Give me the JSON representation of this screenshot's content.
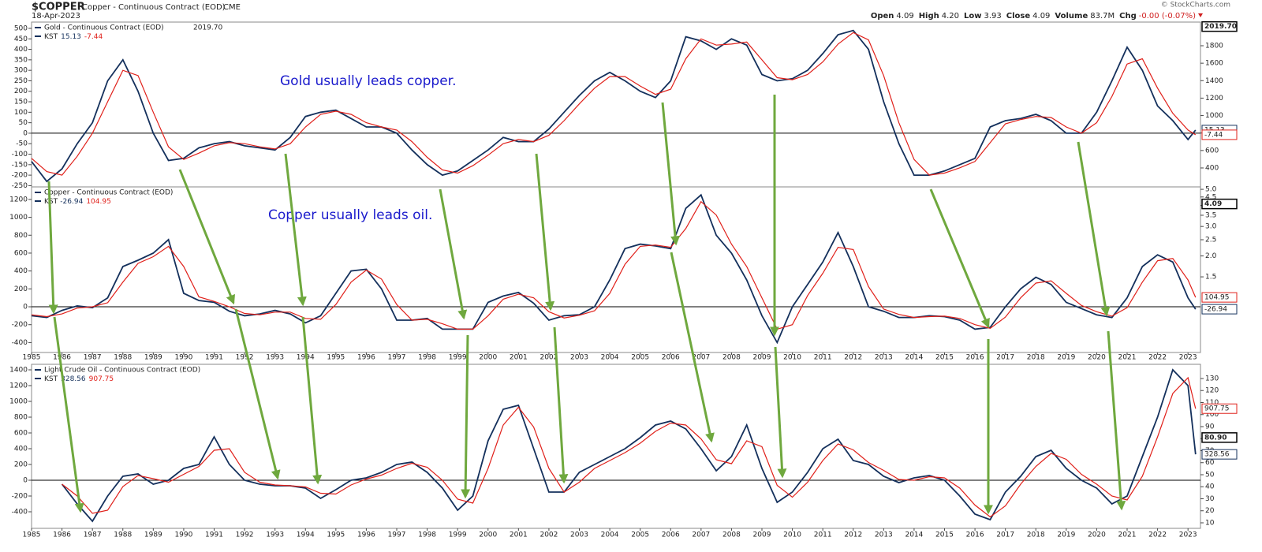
{
  "header": {
    "symbol": "$COPPER",
    "name": "Copper - Continuous Contract (EOD)",
    "exchange": "CME",
    "date": "18-Apr-2023",
    "copyright": "© StockCharts.com",
    "quote": [
      {
        "label": "Open",
        "value": "4.09"
      },
      {
        "label": "High",
        "value": "4.20"
      },
      {
        "label": "Low",
        "value": "3.93"
      },
      {
        "label": "Close",
        "value": "4.09"
      },
      {
        "label": "Volume",
        "value": "83.7M"
      },
      {
        "label": "Chg",
        "value": "-0.00 (-0.07%)"
      }
    ]
  },
  "chart_data": [
    {
      "type": "line",
      "title": "Gold - Continuous Contract (EOD)",
      "price_label": {
        "value": 2019.7,
        "label": "2019.70"
      },
      "annotation": "Gold usually leads copper.",
      "x": [
        1985,
        1985.5,
        1986,
        1986.5,
        1987,
        1987.5,
        1988,
        1988.5,
        1989,
        1989.5,
        1990,
        1990.5,
        1991,
        1991.5,
        1992,
        1992.5,
        1993,
        1993.5,
        1994,
        1994.5,
        1995,
        1995.5,
        1996,
        1996.5,
        1997,
        1997.5,
        1998,
        1998.5,
        1999,
        1999.5,
        2000,
        2000.5,
        2001,
        2001.5,
        2002,
        2002.5,
        2003,
        2003.5,
        2004,
        2004.5,
        2005,
        2005.5,
        2006,
        2006.5,
        2007,
        2007.5,
        2008,
        2008.5,
        2009,
        2009.5,
        2010,
        2010.5,
        2011,
        2011.5,
        2012,
        2012.5,
        2013,
        2013.5,
        2014,
        2014.5,
        2015,
        2015.5,
        2016,
        2016.5,
        2017,
        2017.5,
        2018,
        2018.5,
        2019,
        2019.5,
        2020,
        2020.5,
        2021,
        2021.5,
        2022,
        2022.5,
        2023,
        2023.25
      ],
      "xlim": [
        1985,
        2023.41
      ],
      "ylim": [
        -256,
        530
      ],
      "yticks": [
        -250,
        -200,
        -150,
        -100,
        -50,
        0,
        50,
        100,
        150,
        200,
        250,
        300,
        350,
        400,
        450,
        500
      ],
      "y2lim": [
        183,
        2071
      ],
      "y2ticks": [
        400,
        600,
        800,
        1000,
        1200,
        1400,
        1600,
        1800
      ],
      "series": [
        {
          "name": "KST",
          "color": "#14305c",
          "values": [
            -135,
            -230,
            -170,
            -50,
            50,
            250,
            350,
            200,
            0,
            -130,
            -120,
            -70,
            -50,
            -40,
            -60,
            -70,
            -80,
            -20,
            80,
            100,
            110,
            70,
            30,
            30,
            0,
            -80,
            -150,
            -200,
            -180,
            -130,
            -80,
            -20,
            -40,
            -40,
            20,
            100,
            180,
            250,
            290,
            250,
            200,
            170,
            250,
            460,
            440,
            400,
            450,
            420,
            280,
            250,
            260,
            300,
            380,
            470,
            490,
            400,
            150,
            -50,
            -200,
            -200,
            -180,
            -150,
            -120,
            30,
            60,
            70,
            90,
            60,
            0,
            0,
            100,
            250,
            410,
            300,
            130,
            60,
            -30,
            15.13
          ]
        },
        {
          "color": "#e0201a",
          "values": [
            -120,
            -183,
            -200,
            -110,
            0,
            150,
            300,
            275,
            100,
            -65,
            -125,
            -95,
            -60,
            -45,
            -50,
            -65,
            -75,
            -50,
            30,
            90,
            105,
            90,
            50,
            30,
            15,
            -40,
            -115,
            -175,
            -190,
            -155,
            -105,
            -50,
            -30,
            -40,
            -10,
            60,
            140,
            215,
            270,
            270,
            225,
            185,
            210,
            355,
            450,
            420,
            425,
            435,
            350,
            265,
            255,
            280,
            340,
            425,
            480,
            445,
            275,
            50,
            -125,
            -200,
            -190,
            -165,
            -135,
            -45,
            45,
            65,
            80,
            75,
            30,
            0,
            50,
            175,
            330,
            355,
            215,
            95,
            15,
            -7.44
          ]
        }
      ]
    },
    {
      "type": "line",
      "title": "Copper - Continuous Contract (EOD)",
      "price_label": 4.09,
      "annotation": "Copper usually leads oil.",
      "x": [
        1985,
        1985.5,
        1986,
        1986.5,
        1987,
        1987.5,
        1988,
        1988.5,
        1989,
        1989.5,
        1990,
        1990.5,
        1991,
        1991.5,
        1992,
        1992.5,
        1993,
        1993.5,
        1994,
        1994.5,
        1995,
        1995.5,
        1996,
        1996.5,
        1997,
        1997.5,
        1998,
        1998.5,
        1999,
        1999.5,
        2000,
        2000.5,
        2001,
        2001.5,
        2002,
        2002.5,
        2003,
        2003.5,
        2004,
        2004.5,
        2005,
        2005.5,
        2006,
        2006.5,
        2007,
        2007.5,
        2008,
        2008.5,
        2009,
        2009.5,
        2010,
        2010.5,
        2011,
        2011.5,
        2012,
        2012.5,
        2013,
        2013.5,
        2014,
        2014.5,
        2015,
        2015.5,
        2016,
        2016.5,
        2017,
        2017.5,
        2018,
        2018.5,
        2019,
        2019.5,
        2020,
        2020.5,
        2021,
        2021.5,
        2022,
        2022.5,
        2023,
        2023.25
      ],
      "xlim": [
        1985,
        2023.41
      ],
      "xticks": [
        1985,
        1986,
        1987,
        1988,
        1989,
        1990,
        1991,
        1992,
        1993,
        1994,
        1995,
        1996,
        1997,
        1998,
        1999,
        2000,
        2001,
        2002,
        2003,
        2004,
        2005,
        2006,
        2007,
        2008,
        2009,
        2010,
        2011,
        2012,
        2013,
        2014,
        2015,
        2016,
        2017,
        2018,
        2019,
        2020,
        2021,
        2022,
        2023
      ],
      "ylim": [
        -511,
        1340
      ],
      "yticks": [
        -400,
        -200,
        0,
        200,
        400,
        600,
        800,
        1000,
        1200
      ],
      "y2lim": [
        0.53,
        5.17
      ],
      "y2log": true,
      "y2ticks": [
        1.5,
        {
          "value": 2,
          "label": "2.0"
        },
        2.5,
        {
          "value": 3,
          "label": "3.0"
        },
        3.5,
        {
          "value": 4,
          "label": "4.0"
        },
        4.5,
        {
          "value": 5,
          "label": "5.0"
        }
      ],
      "series": [
        {
          "name": "KST",
          "color": "#14305c",
          "values": [
            -100,
            -120,
            -40,
            10,
            -10,
            100,
            450,
            520,
            600,
            750,
            150,
            70,
            50,
            -50,
            -100,
            -80,
            -40,
            -80,
            -180,
            -100,
            150,
            400,
            420,
            200,
            -150,
            -150,
            -130,
            -250,
            -250,
            -250,
            50,
            120,
            160,
            40,
            -150,
            -100,
            -90,
            0,
            300,
            650,
            700,
            680,
            650,
            1100,
            1250,
            800,
            600,
            300,
            -100,
            -400,
            0,
            250,
            500,
            830,
            450,
            0,
            -50,
            -120,
            -120,
            -100,
            -110,
            -150,
            -250,
            -230,
            0,
            200,
            330,
            250,
            50,
            -20,
            -90,
            -120,
            100,
            450,
            580,
            500,
            100,
            -26.94
          ]
        },
        {
          "color": "#e0201a",
          "values": [
            -90,
            -110,
            -80,
            -15,
            0,
            45,
            275,
            485,
            560,
            675,
            450,
            110,
            60,
            0,
            -75,
            -90,
            -60,
            -60,
            -130,
            -140,
            25,
            275,
            410,
            310,
            25,
            -150,
            -140,
            -190,
            -250,
            -250,
            -100,
            85,
            140,
            100,
            -55,
            -125,
            -95,
            -45,
            150,
            475,
            675,
            690,
            665,
            875,
            1175,
            1025,
            700,
            450,
            100,
            -250,
            -200,
            125,
            375,
            665,
            640,
            225,
            -25,
            -85,
            -120,
            -110,
            -105,
            -130,
            -200,
            -240,
            -115,
            100,
            265,
            290,
            150,
            15,
            -55,
            -105,
            -10,
            275,
            515,
            540,
            300,
            104.95
          ]
        }
      ]
    },
    {
      "type": "line",
      "title": "Light Crude Oil - Continuous Contract (EOD)",
      "price_label": {
        "value": 80.9,
        "label": "80.90"
      },
      "x": [
        1985,
        1985.5,
        1986,
        1986.5,
        1987,
        1987.5,
        1988,
        1988.5,
        1989,
        1989.5,
        1990,
        1990.5,
        1991,
        1991.5,
        1992,
        1992.5,
        1993,
        1993.5,
        1994,
        1994.5,
        1995,
        1995.5,
        1996,
        1996.5,
        1997,
        1997.5,
        1998,
        1998.5,
        1999,
        1999.5,
        2000,
        2000.5,
        2001,
        2001.5,
        2002,
        2002.5,
        2003,
        2003.5,
        2004,
        2004.5,
        2005,
        2005.5,
        2006,
        2006.5,
        2007,
        2007.5,
        2008,
        2008.5,
        2009,
        2009.5,
        2010,
        2010.5,
        2011,
        2011.5,
        2012,
        2012.5,
        2013,
        2013.5,
        2014,
        2014.5,
        2015,
        2015.5,
        2016,
        2016.5,
        2017,
        2017.5,
        2018,
        2018.5,
        2019,
        2019.5,
        2020,
        2020.5,
        2021,
        2021.5,
        2022,
        2022.5,
        2023,
        2023.25
      ],
      "xlim": [
        1985,
        2023.41
      ],
      "xticks": [
        1985,
        1986,
        1987,
        1988,
        1989,
        1990,
        1991,
        1992,
        1993,
        1994,
        1995,
        1996,
        1997,
        1998,
        1999,
        2000,
        2001,
        2002,
        2003,
        2004,
        2005,
        2006,
        2007,
        2008,
        2009,
        2010,
        2011,
        2012,
        2013,
        2014,
        2015,
        2016,
        2017,
        2018,
        2019,
        2020,
        2021,
        2022,
        2023
      ],
      "ylim": [
        -610,
        1470
      ],
      "yticks": [
        -400,
        -200,
        0,
        200,
        400,
        600,
        800,
        1000,
        1200,
        1400
      ],
      "y2lim": [
        5.4,
        141.8
      ],
      "y2ticks": [
        10,
        20,
        30,
        40,
        50,
        60,
        70,
        80,
        90,
        100,
        110,
        120,
        130
      ],
      "series": [
        {
          "name": "KST",
          "color": "#14305c",
          "values": [
            null,
            null,
            -50,
            -300,
            -520,
            -200,
            50,
            80,
            -50,
            0,
            150,
            200,
            550,
            200,
            0,
            -50,
            -70,
            -70,
            -100,
            -230,
            -120,
            0,
            30,
            100,
            200,
            230,
            100,
            -100,
            -380,
            -200,
            500,
            900,
            950,
            400,
            -150,
            -150,
            100,
            200,
            300,
            400,
            540,
            700,
            750,
            650,
            400,
            120,
            300,
            700,
            150,
            -280,
            -150,
            100,
            400,
            520,
            250,
            200,
            50,
            -30,
            30,
            60,
            0,
            -200,
            -430,
            -500,
            -150,
            50,
            300,
            380,
            150,
            0,
            -100,
            -300,
            -200,
            300,
            800,
            1400,
            1200,
            328.56
          ]
        },
        {
          "color": "#e0201a",
          "values": [
            null,
            null,
            -50,
            -200,
            -420,
            -380,
            -80,
            60,
            20,
            -25,
            75,
            175,
            380,
            400,
            100,
            -25,
            -60,
            -70,
            -85,
            -165,
            -175,
            -60,
            15,
            65,
            150,
            215,
            165,
            0,
            -240,
            -290,
            150,
            700,
            925,
            675,
            150,
            -150,
            -25,
            150,
            250,
            350,
            470,
            620,
            725,
            700,
            525,
            260,
            210,
            500,
            425,
            -65,
            -215,
            -25,
            250,
            460,
            385,
            225,
            125,
            10,
            0,
            45,
            30,
            -100,
            -315,
            -465,
            -325,
            -50,
            175,
            340,
            265,
            75,
            -50,
            -200,
            -250,
            50,
            550,
            1100,
            1300,
            907.75
          ]
        }
      ]
    }
  ]
}
